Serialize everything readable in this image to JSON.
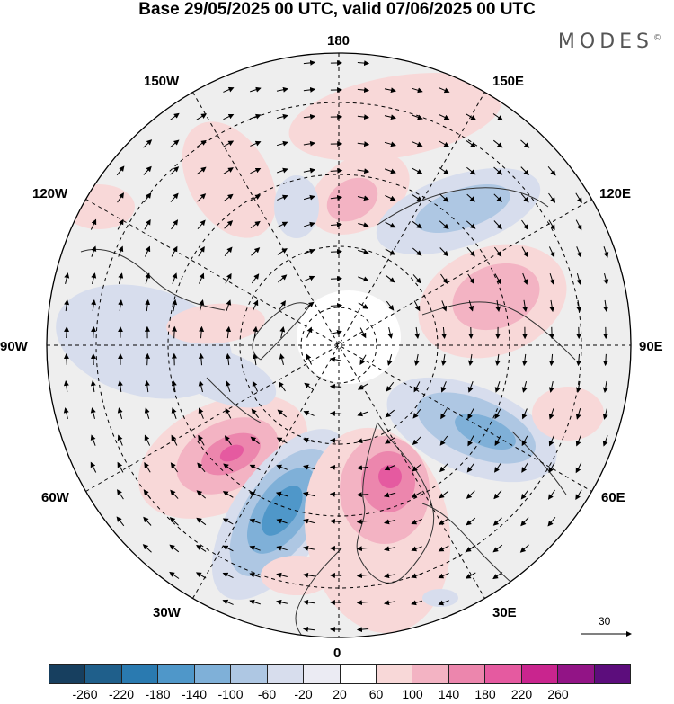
{
  "title": "Base 29/05/2025 00 UTC, valid 07/06/2025 00 UTC",
  "brand": "MODES",
  "brand_mark": "©",
  "longitude_labels": {
    "lon_180": "180",
    "lon_150E": "150E",
    "lon_120E": "120E",
    "lon_90E": "90E",
    "lon_60E": "60E",
    "lon_30E": "30E",
    "lon_0": "0",
    "lon_30W": "30W",
    "lon_60W": "60W",
    "lon_90W": "90W",
    "lon_120W": "120W",
    "lon_150W": "150W"
  },
  "reference_vector": {
    "label": "30"
  },
  "colorbar": {
    "colors": [
      "#173f5f",
      "#1f5f8b",
      "#2a7ab0",
      "#4f97c9",
      "#7fb0d8",
      "#aec7e3",
      "#d7dded",
      "#ebebf3",
      "#ffffff",
      "#f8d8d8",
      "#f3b3c3",
      "#ec86ad",
      "#e55aa0",
      "#c9258e",
      "#921486",
      "#5c0d7c"
    ],
    "ticks": [
      "-260",
      "-220",
      "-180",
      "-140",
      "-100",
      "-60",
      "-20",
      "20",
      "60",
      "100",
      "140",
      "180",
      "220",
      "260"
    ]
  },
  "anomaly_fields": [
    {
      "name": "north-atlantic-positive",
      "sign": "positive",
      "peak": 180
    },
    {
      "name": "western-europe-negative",
      "sign": "negative",
      "peak": -180
    },
    {
      "name": "scandinavia-positive",
      "sign": "positive",
      "peak": 180
    },
    {
      "name": "western-siberia-negative",
      "sign": "negative",
      "peak": -140
    },
    {
      "name": "east-asia-positive",
      "sign": "positive",
      "peak": 100
    },
    {
      "name": "north-pacific-positive",
      "sign": "positive",
      "peak": 100
    },
    {
      "name": "east-siberia-negative",
      "sign": "negative",
      "peak": -100
    },
    {
      "name": "north-america-negative",
      "sign": "negative",
      "peak": -60
    }
  ]
}
